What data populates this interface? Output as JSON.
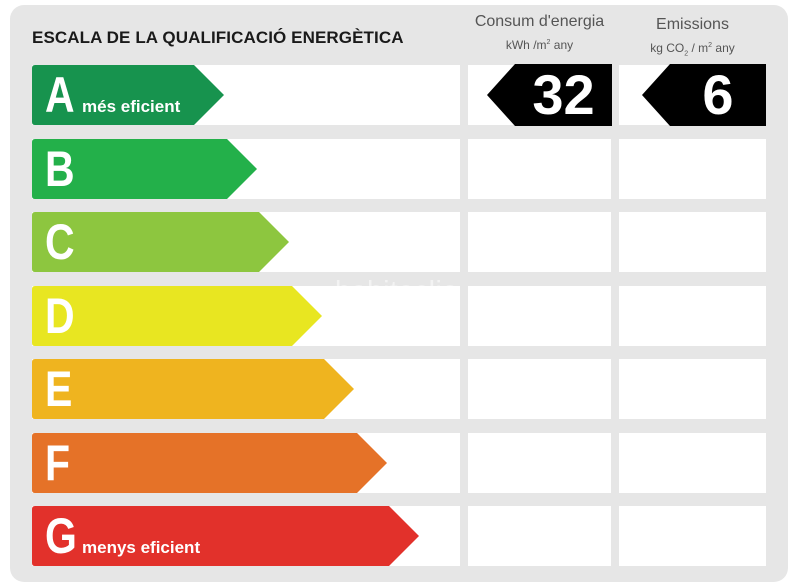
{
  "title": "ESCALA DE LA QUALIFICACIÓ ENERGÈTICA",
  "consumption_header": {
    "title": "Consum d'energia",
    "unit_main": "kWh /m",
    "unit_sup": "2",
    "unit_tail": " any"
  },
  "emissions_header": {
    "title": "Emissions",
    "unit_a": "kg CO",
    "unit_sub": "2",
    "unit_b": " / m",
    "unit_sup": "2",
    "unit_tail": " any"
  },
  "ratings": [
    {
      "letter": "A",
      "label": "més eficient",
      "color": "#17934e"
    },
    {
      "letter": "B",
      "label": "",
      "color": "#23b04a"
    },
    {
      "letter": "C",
      "label": "",
      "color": "#8dc63f"
    },
    {
      "letter": "D",
      "label": "",
      "color": "#e8e621"
    },
    {
      "letter": "E",
      "label": "",
      "color": "#efb41f"
    },
    {
      "letter": "F",
      "label": "",
      "color": "#e57228"
    },
    {
      "letter": "G",
      "label": "menys eficient",
      "color": "#e2312b"
    }
  ],
  "consumption_value": "32",
  "emissions_value": "6",
  "current_rating": "A",
  "watermark": "habitaclia"
}
